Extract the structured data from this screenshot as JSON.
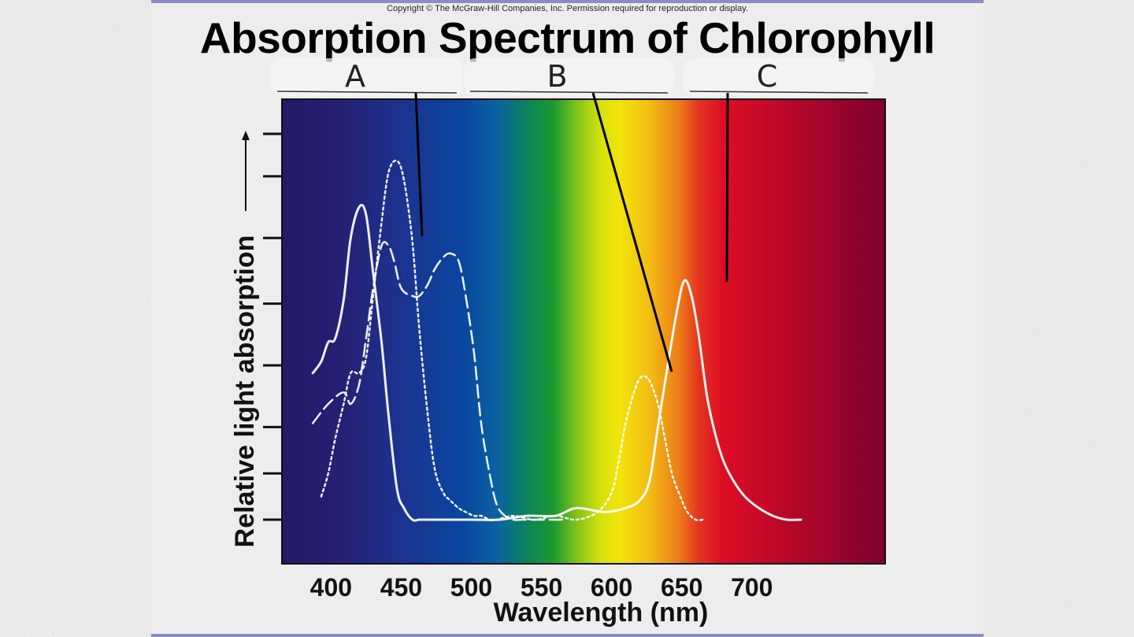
{
  "copyright": "Copyright © The McGraw-Hill Companies, Inc. Permission required for reproduction or display.",
  "title": "Absorption Spectrum of Chlorophyll",
  "chart_data": {
    "type": "line",
    "title": "Absorption Spectrum of Chlorophyll",
    "xlabel": "Wavelength (nm)",
    "ylabel": "Relative light absorption",
    "x_ticks": [
      400,
      450,
      500,
      550,
      600,
      650,
      700
    ],
    "xlim": [
      365,
      795
    ],
    "ylim": [
      0,
      1
    ],
    "grid": false,
    "background": "visible light spectrum gradient (violet to deep red)",
    "handwritten_labels": [
      "A",
      "B",
      "C"
    ],
    "series": [
      {
        "style": "solid",
        "color": "#ffffff",
        "x": [
          387,
          393,
          398,
          403,
          409,
          414,
          420,
          425,
          430,
          436,
          441,
          447,
          452,
          458,
          463,
          469,
          480,
          500,
          520,
          540,
          560,
          575,
          595,
          610,
          620,
          627,
          633,
          640,
          647,
          652,
          657,
          662,
          668,
          674,
          680,
          687,
          695,
          705,
          715,
          725,
          735
        ],
        "y": [
          0.38,
          0.41,
          0.46,
          0.47,
          0.57,
          0.73,
          0.81,
          0.79,
          0.64,
          0.46,
          0.27,
          0.08,
          0.03,
          0.0,
          0.0,
          0.0,
          0.0,
          0.0,
          0.0,
          0.01,
          0.01,
          0.03,
          0.02,
          0.03,
          0.05,
          0.1,
          0.24,
          0.4,
          0.55,
          0.62,
          0.58,
          0.48,
          0.32,
          0.22,
          0.15,
          0.1,
          0.06,
          0.03,
          0.01,
          0.0,
          0.0
        ]
      },
      {
        "style": "dashed",
        "color": "#ffffff",
        "x": [
          387,
          398,
          409,
          414,
          420,
          425,
          430,
          436,
          441,
          445,
          450,
          458,
          463,
          469,
          474,
          480,
          485,
          491,
          496,
          502,
          507,
          513,
          518,
          524,
          530,
          536,
          545,
          555,
          565
        ],
        "y": [
          0.25,
          0.3,
          0.33,
          0.3,
          0.35,
          0.47,
          0.6,
          0.71,
          0.71,
          0.67,
          0.6,
          0.58,
          0.58,
          0.61,
          0.65,
          0.68,
          0.69,
          0.67,
          0.58,
          0.43,
          0.25,
          0.12,
          0.04,
          0.01,
          0.0,
          0.0,
          0.0,
          0.0,
          0.0
        ]
      },
      {
        "style": "dotted",
        "color": "#ffffff",
        "x": [
          393,
          398,
          403,
          409,
          414,
          420,
          425,
          430,
          436,
          441,
          447,
          452,
          458,
          463,
          469,
          474,
          480,
          485,
          491,
          496,
          502,
          507,
          513,
          518,
          530,
          545,
          560,
          575,
          590,
          600,
          605,
          610,
          616,
          621,
          627,
          633,
          638,
          643,
          649,
          654,
          660,
          665
        ],
        "y": [
          0.06,
          0.12,
          0.21,
          0.3,
          0.38,
          0.38,
          0.42,
          0.58,
          0.77,
          0.9,
          0.93,
          0.88,
          0.72,
          0.49,
          0.27,
          0.13,
          0.07,
          0.05,
          0.03,
          0.02,
          0.01,
          0.01,
          0.0,
          0.0,
          0.01,
          0.0,
          0.01,
          0.0,
          0.02,
          0.07,
          0.15,
          0.25,
          0.33,
          0.37,
          0.36,
          0.3,
          0.21,
          0.12,
          0.06,
          0.02,
          0.0,
          0.0
        ]
      }
    ]
  }
}
